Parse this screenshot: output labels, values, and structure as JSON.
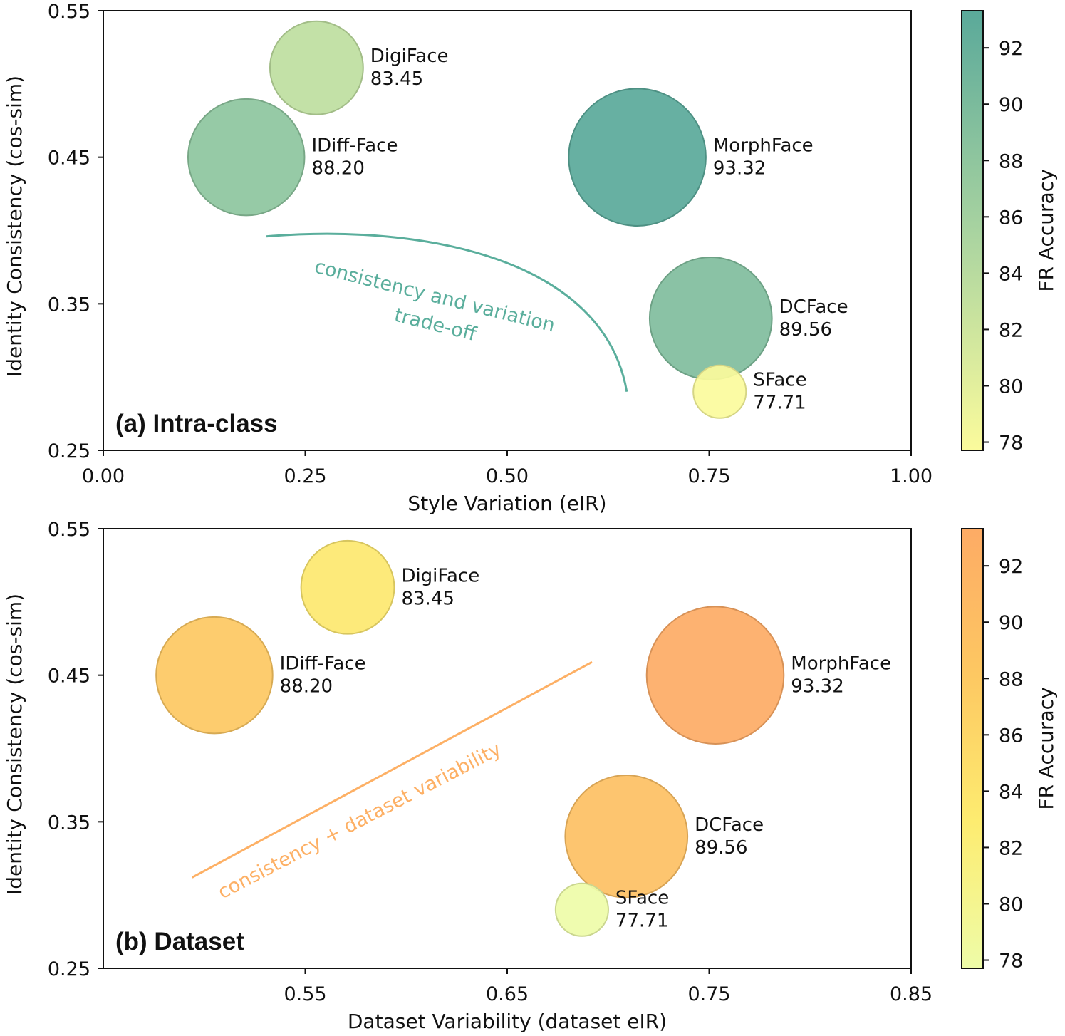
{
  "chart_data": [
    {
      "type": "scatter",
      "panel_label": "(a) Intra-class",
      "xlabel": "Style Variation (eIR)",
      "ylabel": "Identity Consistency (cos-sim)",
      "xlim": [
        0.0,
        1.0
      ],
      "ylim": [
        0.25,
        0.55
      ],
      "xticks": [
        "0.00",
        "0.25",
        "0.50",
        "0.75",
        "1.00"
      ],
      "xtick_values": [
        0.0,
        0.25,
        0.5,
        0.75,
        1.0
      ],
      "yticks": [
        "0.25",
        "0.35",
        "0.45",
        "0.55"
      ],
      "ytick_values": [
        0.25,
        0.35,
        0.45,
        0.55
      ],
      "colorbar": {
        "label": "FR Accuracy",
        "range": [
          77.71,
          93.32
        ],
        "ticks": [
          "78",
          "80",
          "82",
          "84",
          "86",
          "88",
          "90",
          "92"
        ],
        "tick_values": [
          78,
          80,
          82,
          84,
          86,
          88,
          90,
          92
        ],
        "colormap": [
          "#fbfb9c",
          "#a8d3a0",
          "#5aa99a"
        ]
      },
      "points": [
        {
          "name": "DigiFace",
          "x": 0.264,
          "y": 0.511,
          "accuracy": 83.45,
          "acc_label": "83.45"
        },
        {
          "name": "IDiff-Face",
          "x": 0.177,
          "y": 0.45,
          "accuracy": 88.2,
          "acc_label": "88.20"
        },
        {
          "name": "MorphFace",
          "x": 0.661,
          "y": 0.45,
          "accuracy": 93.32,
          "acc_label": "93.32"
        },
        {
          "name": "DCFace",
          "x": 0.752,
          "y": 0.34,
          "accuracy": 89.56,
          "acc_label": "89.56"
        },
        {
          "name": "SFace",
          "x": 0.763,
          "y": 0.29,
          "accuracy": 77.71,
          "acc_label": "77.71"
        }
      ],
      "annotation": {
        "kind": "curve",
        "color": "#5aae9c",
        "text_lines": [
          "consistency and variation",
          "trade-off"
        ],
        "start": [
          0.202,
          0.396
        ],
        "ctrl1": [
          0.4,
          0.405
        ],
        "ctrl2": [
          0.62,
          0.38
        ],
        "end": [
          0.648,
          0.29
        ]
      }
    },
    {
      "type": "scatter",
      "panel_label": "(b) Dataset",
      "xlabel": "Dataset Variability (dataset eIR)",
      "ylabel": "Identity Consistency (cos-sim)",
      "xlim": [
        0.45,
        0.85
      ],
      "ylim": [
        0.25,
        0.55
      ],
      "xticks": [
        "0.55",
        "0.65",
        "0.75",
        "0.85"
      ],
      "xtick_values": [
        0.55,
        0.65,
        0.75,
        0.85
      ],
      "yticks": [
        "0.25",
        "0.35",
        "0.45",
        "0.55"
      ],
      "ytick_values": [
        0.25,
        0.35,
        0.45,
        0.55
      ],
      "colorbar": {
        "label": "FR Accuracy",
        "range": [
          77.71,
          93.32
        ],
        "ticks": [
          "78",
          "80",
          "82",
          "84",
          "86",
          "88",
          "90",
          "92"
        ],
        "tick_values": [
          78,
          80,
          82,
          84,
          86,
          88,
          90,
          92
        ],
        "colormap": [
          "#eefca8",
          "#fdec70",
          "#fdc862",
          "#fdab65"
        ]
      },
      "points": [
        {
          "name": "DigiFace",
          "x": 0.571,
          "y": 0.51,
          "accuracy": 83.45,
          "acc_label": "83.45"
        },
        {
          "name": "IDiff-Face",
          "x": 0.505,
          "y": 0.45,
          "accuracy": 88.2,
          "acc_label": "88.20"
        },
        {
          "name": "MorphFace",
          "x": 0.753,
          "y": 0.45,
          "accuracy": 93.32,
          "acc_label": "93.32"
        },
        {
          "name": "DCFace",
          "x": 0.709,
          "y": 0.34,
          "accuracy": 89.56,
          "acc_label": "89.56"
        },
        {
          "name": "SFace",
          "x": 0.687,
          "y": 0.29,
          "accuracy": 77.71,
          "acc_label": "77.71"
        }
      ],
      "annotation": {
        "kind": "line",
        "color": "#fdb065",
        "text_lines": [
          "consistency + dataset variability"
        ],
        "start": [
          0.494,
          0.312
        ],
        "end": [
          0.692,
          0.459
        ]
      }
    }
  ]
}
